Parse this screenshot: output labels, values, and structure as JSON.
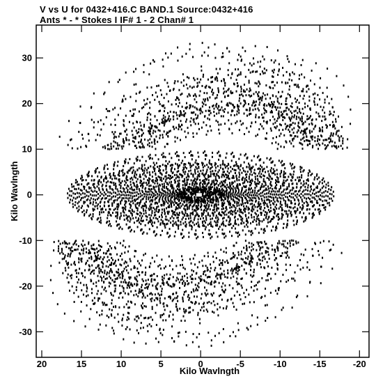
{
  "header": {
    "title_line1": "V vs U for 0432+416.C BAND.1   Source:0432+416",
    "title_line2": "Ants * - *     Stokes I  IF# 1 - 2   Chan# 1"
  },
  "chart_data": {
    "type": "scatter",
    "title": "V vs U for 0432+416.C BAND.1   Source:0432+416",
    "subtitle": "Ants * - *     Stokes I  IF# 1 - 2   Chan# 1",
    "xlabel": "Kilo Wavlngth",
    "ylabel": "Kilo Wavlngth",
    "xlim": [
      20.7,
      -21.2
    ],
    "ylim": [
      -35.6,
      37.2
    ],
    "x_reversed": true,
    "x_ticks": [
      20,
      15,
      10,
      5,
      0,
      -5,
      -10,
      -15,
      -20
    ],
    "x_tick_labels": [
      "20",
      "15",
      "10",
      "5",
      "0",
      "-5",
      "-10",
      "-15",
      "-20"
    ],
    "y_ticks": [
      -30,
      -20,
      -10,
      0,
      10,
      20,
      30
    ],
    "y_tick_labels": [
      "-30",
      "-20",
      "-10",
      "0",
      "10",
      "20",
      "30"
    ],
    "grid": false,
    "marker": "dot",
    "color": "#000000",
    "coverage": {
      "description_of_shape": "uv-coverage",
      "outer_band": {
        "u_max": 19.5,
        "v_max": 35,
        "v_min_at_center": 10
      },
      "inner_ellipse": {
        "u_max": 17,
        "v_max": 10
      },
      "core_cluster": {
        "u_max": 3,
        "v_max": 1.5
      }
    }
  }
}
